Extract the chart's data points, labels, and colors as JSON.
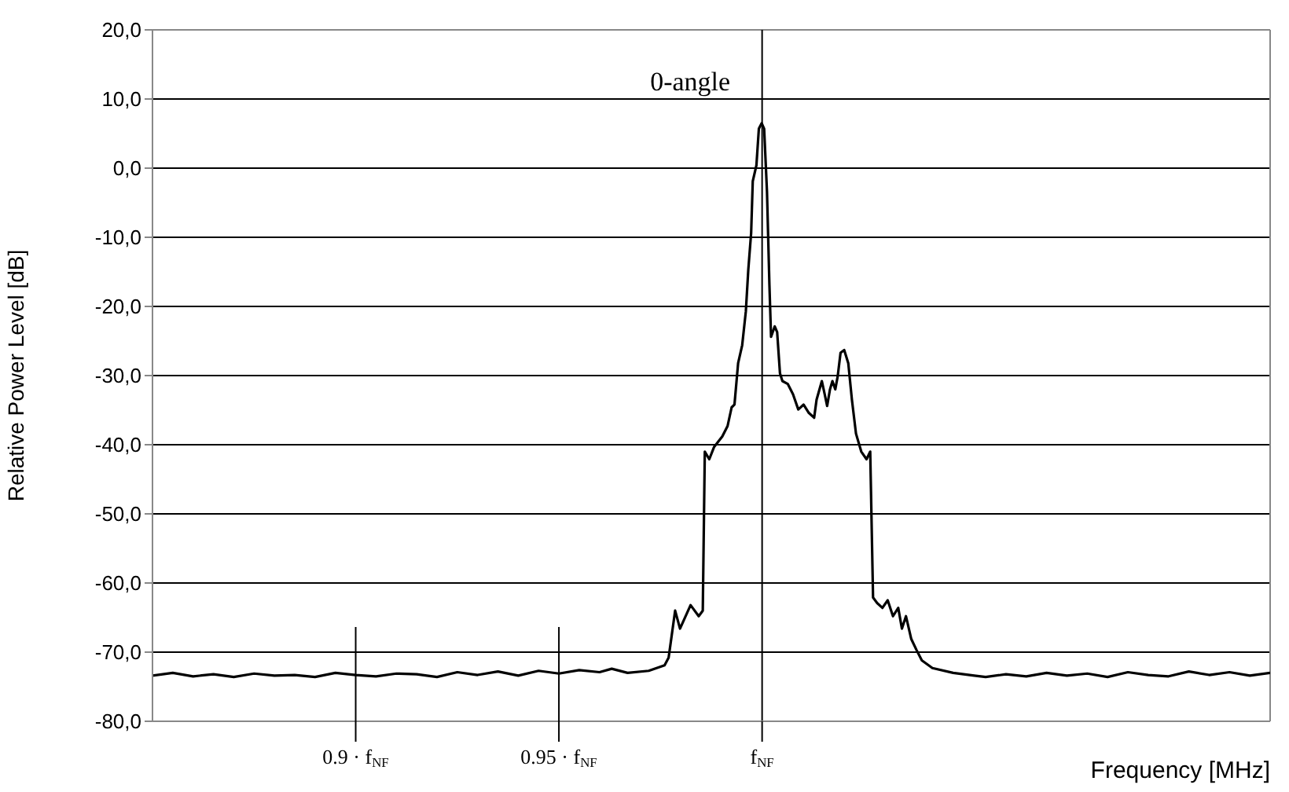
{
  "chart_data": {
    "type": "line",
    "ylabel": "Relative Power Level [dB]",
    "xlabel": "Frequency [MHz]",
    "grid": "y",
    "marker": "none",
    "line_style": "solid",
    "xlim": [
      0.85,
      1.125
    ],
    "xticks": [
      {
        "value": 0.9,
        "label": "0.9 · f$_{NF}$"
      },
      {
        "value": 0.95,
        "label": "0.95 · f$_{NF}$"
      },
      {
        "value": 1,
        "label": "f$_{NF}$"
      }
    ],
    "ylim": [
      -80,
      20
    ],
    "yticks": [
      {
        "value": -80,
        "label": "-80,0"
      },
      {
        "value": -70,
        "label": "-70,0"
      },
      {
        "value": -60,
        "label": "-60,0"
      },
      {
        "value": -50,
        "label": "-50,0"
      },
      {
        "value": -40,
        "label": "-40,0"
      },
      {
        "value": -30,
        "label": "-30,0"
      },
      {
        "value": -20,
        "label": "-20,0"
      },
      {
        "value": -10,
        "label": "-10,0"
      },
      {
        "value": 0,
        "label": "0,0"
      },
      {
        "value": 10,
        "label": "10,0"
      },
      {
        "value": 20,
        "label": "20,0"
      }
    ],
    "ref_lines": [
      {
        "axis": "x",
        "value": 1,
        "color": "#000000"
      }
    ],
    "annotations": [
      {
        "text": "0-angle",
        "x": 0.9999,
        "y": 6.5
      }
    ],
    "series": [
      {
        "color": "#000000",
        "x": [
          0.85,
          0.855,
          0.86,
          0.865,
          0.87,
          0.875,
          0.88,
          0.885,
          0.89,
          0.895,
          0.9,
          0.905,
          0.91,
          0.915,
          0.92,
          0.925,
          0.93,
          0.935,
          0.94,
          0.945,
          0.95,
          0.955,
          0.96,
          0.963,
          0.9669,
          0.9721,
          0.976,
          0.977,
          0.9786,
          0.9798,
          0.9824,
          0.9844,
          0.9854,
          0.9859,
          0.987,
          0.9882,
          0.9902,
          0.9915,
          0.9925,
          0.9932,
          0.9941,
          0.9951,
          0.996,
          0.9966,
          0.9973,
          0.9977,
          0.9986,
          0.9992,
          0.9999,
          1.0005,
          1.0012,
          1.0018,
          1.0022,
          1.0031,
          1.0037,
          1.0044,
          1.005,
          1.0063,
          1.0076,
          1.0089,
          1.0102,
          1.0115,
          1.0128,
          1.0134,
          1.0147,
          1.0154,
          1.016,
          1.0167,
          1.0173,
          1.018,
          1.0186,
          1.0193,
          1.0202,
          1.0212,
          1.0221,
          1.0231,
          1.0244,
          1.0257,
          1.0266,
          1.0273,
          1.0283,
          1.0296,
          1.0309,
          1.0322,
          1.0335,
          1.0344,
          1.0354,
          1.0367,
          1.038,
          1.0393,
          1.0419,
          1.047,
          1.0522,
          1.055,
          1.06,
          1.065,
          1.07,
          1.075,
          1.08,
          1.085,
          1.09,
          1.095,
          1.1,
          1.105,
          1.11,
          1.115,
          1.12,
          1.125
        ],
        "values": [
          -73.4,
          -73.0,
          -73.5,
          -73.2,
          -73.6,
          -73.1,
          -73.4,
          -73.3,
          -73.6,
          -73.0,
          -73.3,
          -73.5,
          -73.1,
          -73.2,
          -73.6,
          -72.9,
          -73.3,
          -72.8,
          -73.4,
          -72.7,
          -73.1,
          -72.6,
          -72.9,
          -72.4,
          -73.0,
          -72.7,
          -71.9,
          -70.8,
          -64.0,
          -66.6,
          -63.2,
          -64.8,
          -64.0,
          -41.0,
          -42.1,
          -40.3,
          -38.8,
          -37.3,
          -34.6,
          -34.2,
          -28.2,
          -25.6,
          -20.7,
          -14.7,
          -9.4,
          -1.9,
          0.4,
          5.7,
          6.5,
          5.7,
          -3.4,
          -16.9,
          -24.4,
          -22.9,
          -23.7,
          -29.7,
          -30.8,
          -31.2,
          -32.7,
          -34.9,
          -34.2,
          -35.4,
          -36.1,
          -33.5,
          -30.8,
          -32.7,
          -34.4,
          -32.0,
          -30.8,
          -32.0,
          -30.1,
          -26.7,
          -26.3,
          -28.2,
          -33.5,
          -38.4,
          -41.0,
          -42.1,
          -41.0,
          -62.1,
          -62.9,
          -63.6,
          -62.5,
          -64.8,
          -63.6,
          -66.6,
          -64.8,
          -68.1,
          -69.7,
          -71.2,
          -72.3,
          -73.0,
          -73.4,
          -73.6,
          -73.2,
          -73.5,
          -73.0,
          -73.4,
          -73.1,
          -73.6,
          -72.9,
          -73.3,
          -73.5,
          -72.8,
          -73.3,
          -72.9,
          -73.4,
          -73.0
        ]
      }
    ]
  }
}
